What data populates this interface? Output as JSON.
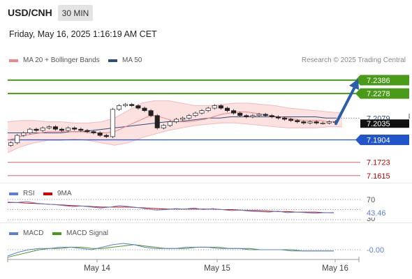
{
  "header": {
    "symbol": "USD/CNH",
    "timeframe": "30 MIN",
    "datetime": "Friday, May 16, 2025 1:16:19 AM CET",
    "credit": "Research © 2025 Trading Central"
  },
  "legend": {
    "main": [
      {
        "label": "MA 20 + Bollinger Bands",
        "color": "#f28585"
      },
      {
        "label": "MA 50",
        "color": "#2b4f80"
      }
    ],
    "rsi": [
      {
        "label": "RSI",
        "color": "#5b7fd6"
      },
      {
        "label": "9MA",
        "color": "#d40000"
      }
    ],
    "macd": [
      {
        "label": "MACD",
        "color": "#5b7fd6"
      },
      {
        "label": "MACD Signal",
        "color": "#4a9a1a"
      }
    ]
  },
  "colors": {
    "resistance": "#4a9a1a",
    "pivot": "#2255cc",
    "support": "#e88080",
    "bollinger_fill": "#fbdcdc",
    "arrow": "#2b5ea8"
  },
  "chart_data": [
    {
      "type": "candlestick",
      "title": "USD/CNH",
      "timeframe": "30 MIN",
      "x_ticks": [
        "May 14",
        "May 15",
        "May 16"
      ],
      "ylim": [
        7.158,
        7.247
      ],
      "levels": [
        {
          "value": 7.2386,
          "label": "7.2386",
          "kind": "resistance"
        },
        {
          "value": 7.2278,
          "label": "7.2278",
          "kind": "resistance"
        },
        {
          "value": 7.2079,
          "label": "7.2079",
          "kind": "last-price"
        },
        {
          "value": 7.2035,
          "label": "7.2035",
          "kind": "current-close"
        },
        {
          "value": 7.1904,
          "label": "7.1904",
          "kind": "pivot"
        },
        {
          "value": 7.1723,
          "label": "7.1723",
          "kind": "support"
        },
        {
          "value": 7.1615,
          "label": "7.1615",
          "kind": "support"
        }
      ],
      "price_series": [
        7.188,
        7.194,
        7.196,
        7.199,
        7.198,
        7.2,
        7.201,
        7.199,
        7.198,
        7.2,
        7.199,
        7.198,
        7.197,
        7.196,
        7.194,
        7.193,
        7.215,
        7.218,
        7.219,
        7.218,
        7.216,
        7.214,
        7.21,
        7.2,
        7.202,
        7.205,
        7.207,
        7.208,
        7.21,
        7.212,
        7.214,
        7.216,
        7.218,
        7.216,
        7.214,
        7.212,
        7.21,
        7.209,
        7.21,
        7.211,
        7.21,
        7.209,
        7.208,
        7.207,
        7.206,
        7.205,
        7.204,
        7.205,
        7.204,
        7.204,
        7.205,
        7.205
      ],
      "ma20": [
        7.19,
        7.192,
        7.194,
        7.195,
        7.196,
        7.197,
        7.197,
        7.197,
        7.197,
        7.197,
        7.196,
        7.196,
        7.196,
        7.197,
        7.2,
        7.203,
        7.206,
        7.209,
        7.21,
        7.208,
        7.206,
        7.205,
        7.205,
        7.206,
        7.207,
        7.209,
        7.211,
        7.212,
        7.213,
        7.213,
        7.212,
        7.211,
        7.21,
        7.209,
        7.208,
        7.207,
        7.206,
        7.206,
        7.206,
        7.205,
        7.205
      ],
      "ma50": [
        7.196,
        7.196,
        7.196,
        7.196,
        7.196,
        7.196,
        7.197,
        7.197,
        7.198,
        7.199,
        7.2,
        7.201,
        7.202,
        7.203,
        7.204,
        7.205,
        7.205,
        7.206,
        7.207,
        7.208,
        7.208,
        7.209,
        7.209,
        7.209,
        7.209,
        7.209,
        7.209,
        7.209,
        7.209,
        7.209,
        7.208,
        7.208
      ],
      "bb_upper": [
        7.205,
        7.206,
        7.206,
        7.205,
        7.205,
        7.204,
        7.204,
        7.205,
        7.208,
        7.214,
        7.22,
        7.222,
        7.222,
        7.22,
        7.218,
        7.218,
        7.219,
        7.22,
        7.22,
        7.219,
        7.218,
        7.216,
        7.215,
        7.214,
        7.213,
        7.212
      ],
      "bb_lower": [
        7.18,
        7.185,
        7.188,
        7.19,
        7.19,
        7.191,
        7.19,
        7.188,
        7.186,
        7.188,
        7.192,
        7.195,
        7.198,
        7.2,
        7.202,
        7.203,
        7.204,
        7.204,
        7.203,
        7.202,
        7.201,
        7.2,
        7.2,
        7.2,
        7.201,
        7.201
      ],
      "projection": {
        "from": 7.2035,
        "to": 7.2386
      }
    },
    {
      "type": "line",
      "title": "RSI",
      "ylim": [
        30,
        70
      ],
      "ticks": [
        "70",
        "30"
      ],
      "last_value_label": "43.46",
      "rsi": [
        65,
        64,
        66,
        63,
        61,
        60,
        58,
        56,
        57,
        55,
        53,
        55,
        58,
        56,
        54,
        51,
        49,
        50,
        52,
        51,
        53,
        50,
        52,
        50,
        48,
        49,
        47,
        46,
        45,
        47,
        44,
        45,
        44,
        43,
        44,
        43.46
      ],
      "ma9": [
        64,
        64,
        63,
        62,
        61,
        60,
        59,
        58,
        57,
        56,
        55,
        55,
        55,
        55,
        54,
        53,
        52,
        51,
        51,
        51,
        51,
        51,
        51,
        50,
        50,
        49,
        48,
        48,
        47,
        46,
        46,
        45,
        45,
        45,
        44,
        44
      ]
    },
    {
      "type": "line",
      "title": "MACD",
      "last_value_label": "-0.00",
      "macd": [
        -0.005,
        -0.002,
        0.0,
        0.001,
        0.001,
        0.002,
        0.002,
        0.001,
        0.0,
        0.002,
        0.004,
        0.005,
        0.004,
        0.002,
        0.001,
        0.001,
        0.001,
        0.002,
        0.002,
        0.002,
        0.001,
        0.001,
        0.001,
        0.0,
        0.0,
        0.0,
        0.0,
        -0.001,
        -0.001,
        -0.001,
        -0.001,
        -0.001
      ],
      "signal": [
        -0.006,
        -0.004,
        -0.002,
        0.0,
        0.001,
        0.001,
        0.002,
        0.002,
        0.001,
        0.001,
        0.002,
        0.003,
        0.004,
        0.003,
        0.002,
        0.001,
        0.001,
        0.001,
        0.002,
        0.002,
        0.002,
        0.001,
        0.001,
        0.001,
        0.0,
        0.0,
        0.0,
        0.0,
        -0.001,
        -0.001,
        -0.001,
        -0.001
      ]
    }
  ]
}
